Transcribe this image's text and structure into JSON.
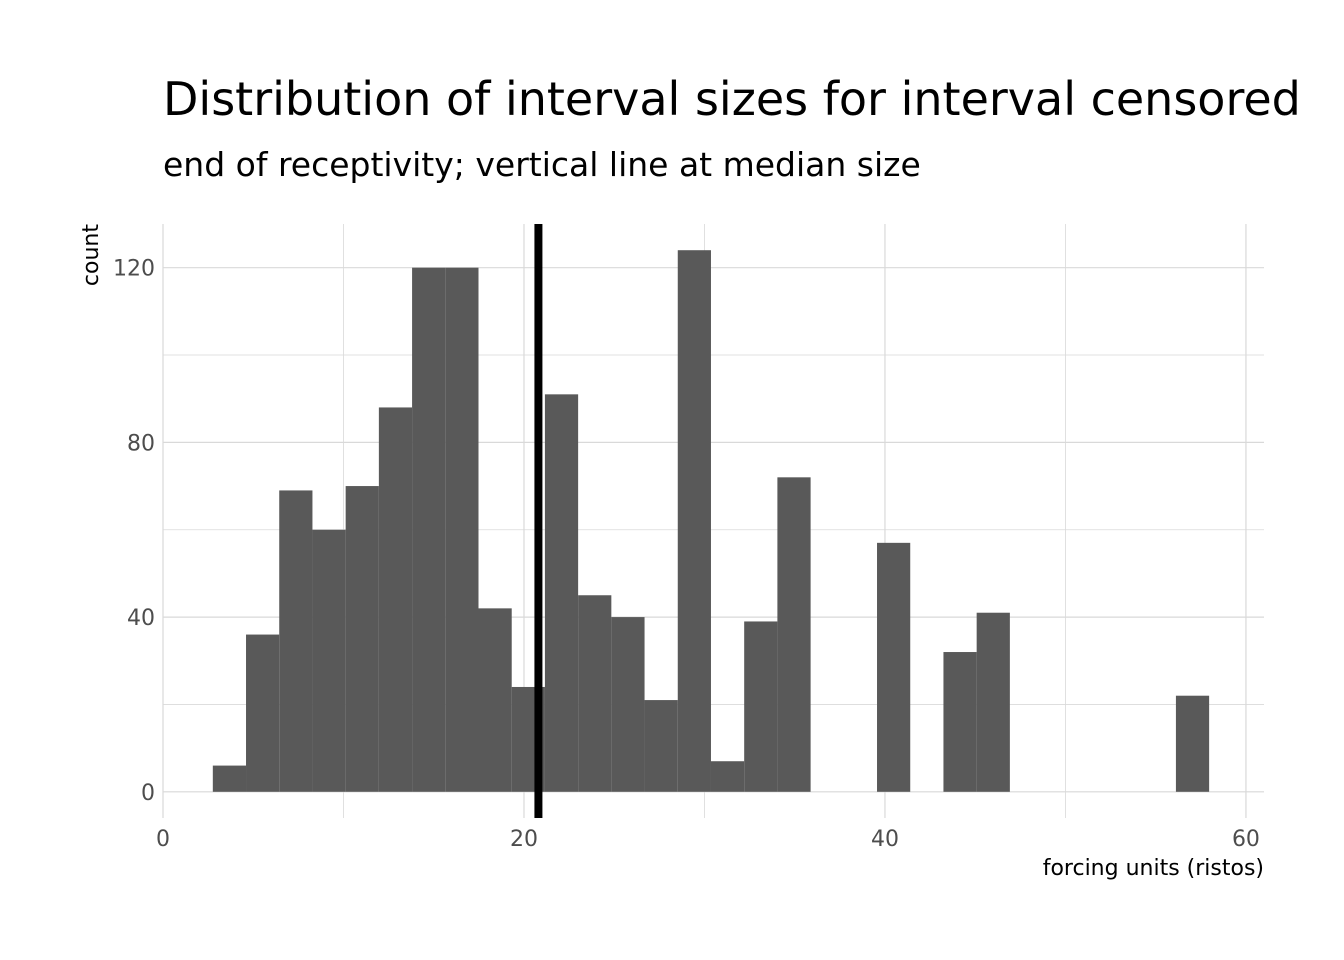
{
  "chart_data": {
    "type": "bar",
    "title": "Distribution of interval sizes for interval censored",
    "subtitle": "end of receptivity; vertical line at median size",
    "xlabel": "forcing units (ristos)",
    "ylabel": "count",
    "xlim": [
      0,
      61
    ],
    "ylim": [
      -6,
      130
    ],
    "xticks": [
      0,
      20,
      40,
      60
    ],
    "yticks": [
      0,
      40,
      80,
      120
    ],
    "grid": true,
    "bin_width": 1.84,
    "bins": [
      {
        "x": 3.68,
        "count": 6
      },
      {
        "x": 5.52,
        "count": 36
      },
      {
        "x": 7.36,
        "count": 69
      },
      {
        "x": 9.2,
        "count": 60
      },
      {
        "x": 11.04,
        "count": 70
      },
      {
        "x": 12.88,
        "count": 88
      },
      {
        "x": 14.72,
        "count": 120
      },
      {
        "x": 16.56,
        "count": 120
      },
      {
        "x": 18.4,
        "count": 42
      },
      {
        "x": 20.24,
        "count": 24
      },
      {
        "x": 22.08,
        "count": 91
      },
      {
        "x": 23.92,
        "count": 45
      },
      {
        "x": 25.76,
        "count": 40
      },
      {
        "x": 27.6,
        "count": 21
      },
      {
        "x": 29.44,
        "count": 124
      },
      {
        "x": 31.28,
        "count": 7
      },
      {
        "x": 33.12,
        "count": 39
      },
      {
        "x": 34.96,
        "count": 72
      },
      {
        "x": 36.8,
        "count": 0
      },
      {
        "x": 38.64,
        "count": 0
      },
      {
        "x": 40.48,
        "count": 57
      },
      {
        "x": 42.32,
        "count": 0
      },
      {
        "x": 44.16,
        "count": 32
      },
      {
        "x": 46.0,
        "count": 41
      },
      {
        "x": 47.84,
        "count": 0
      },
      {
        "x": 49.68,
        "count": 0
      },
      {
        "x": 51.52,
        "count": 0
      },
      {
        "x": 53.36,
        "count": 0
      },
      {
        "x": 55.2,
        "count": 0
      },
      {
        "x": 57.04,
        "count": 22
      }
    ],
    "median_line": 20.8
  },
  "colors": {
    "bar": "#595959",
    "median_line": "#000000",
    "grid": "#d9d9d9"
  }
}
